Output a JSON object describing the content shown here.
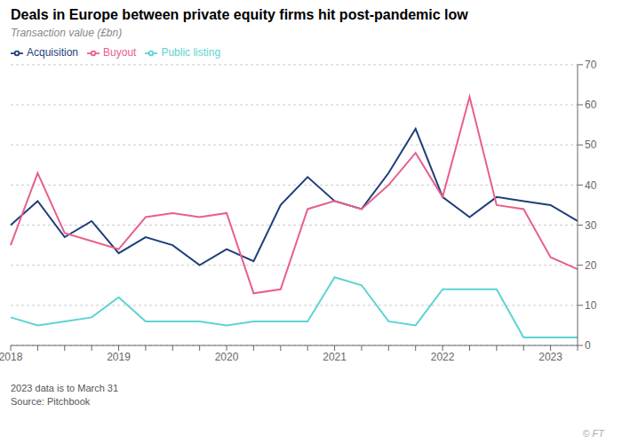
{
  "chart_data": {
    "type": "line",
    "title": "Deals in Europe between private equity firms hit post-pandemic low",
    "subtitle": "Transaction value (£bn)",
    "categories": [
      "2018",
      null,
      null,
      null,
      "2019",
      null,
      null,
      null,
      "2020",
      null,
      null,
      null,
      "2021",
      null,
      null,
      null,
      "2022",
      null,
      null,
      null,
      "2023",
      null
    ],
    "series": [
      {
        "name": "Acquisition",
        "color": "#1f3f7a",
        "values": [
          30,
          36,
          27,
          31,
          23,
          27,
          25,
          20,
          24,
          21,
          35,
          42,
          36,
          34,
          43,
          54,
          37,
          32,
          37,
          36,
          35,
          31
        ]
      },
      {
        "name": "Buyout",
        "color": "#e8608a",
        "values": [
          25,
          43,
          28,
          26,
          24,
          32,
          33,
          32,
          33,
          13,
          14,
          34,
          36,
          34,
          40,
          48,
          37,
          62,
          35,
          34,
          22,
          19
        ]
      },
      {
        "name": "Public listing",
        "color": "#5dd3d3",
        "values": [
          7,
          5,
          6,
          7,
          12,
          6,
          6,
          6,
          5,
          6,
          6,
          6,
          17,
          15,
          6,
          5,
          14,
          14,
          14,
          2,
          2,
          2
        ]
      }
    ],
    "ylim": [
      0,
      70
    ],
    "yticks": [
      0,
      10,
      20,
      30,
      40,
      50,
      60,
      70
    ],
    "grid": true,
    "legend": "upper left",
    "annotations": [
      "2023 data is to March 31",
      "Source: Pitchbook",
      "© FT"
    ]
  }
}
